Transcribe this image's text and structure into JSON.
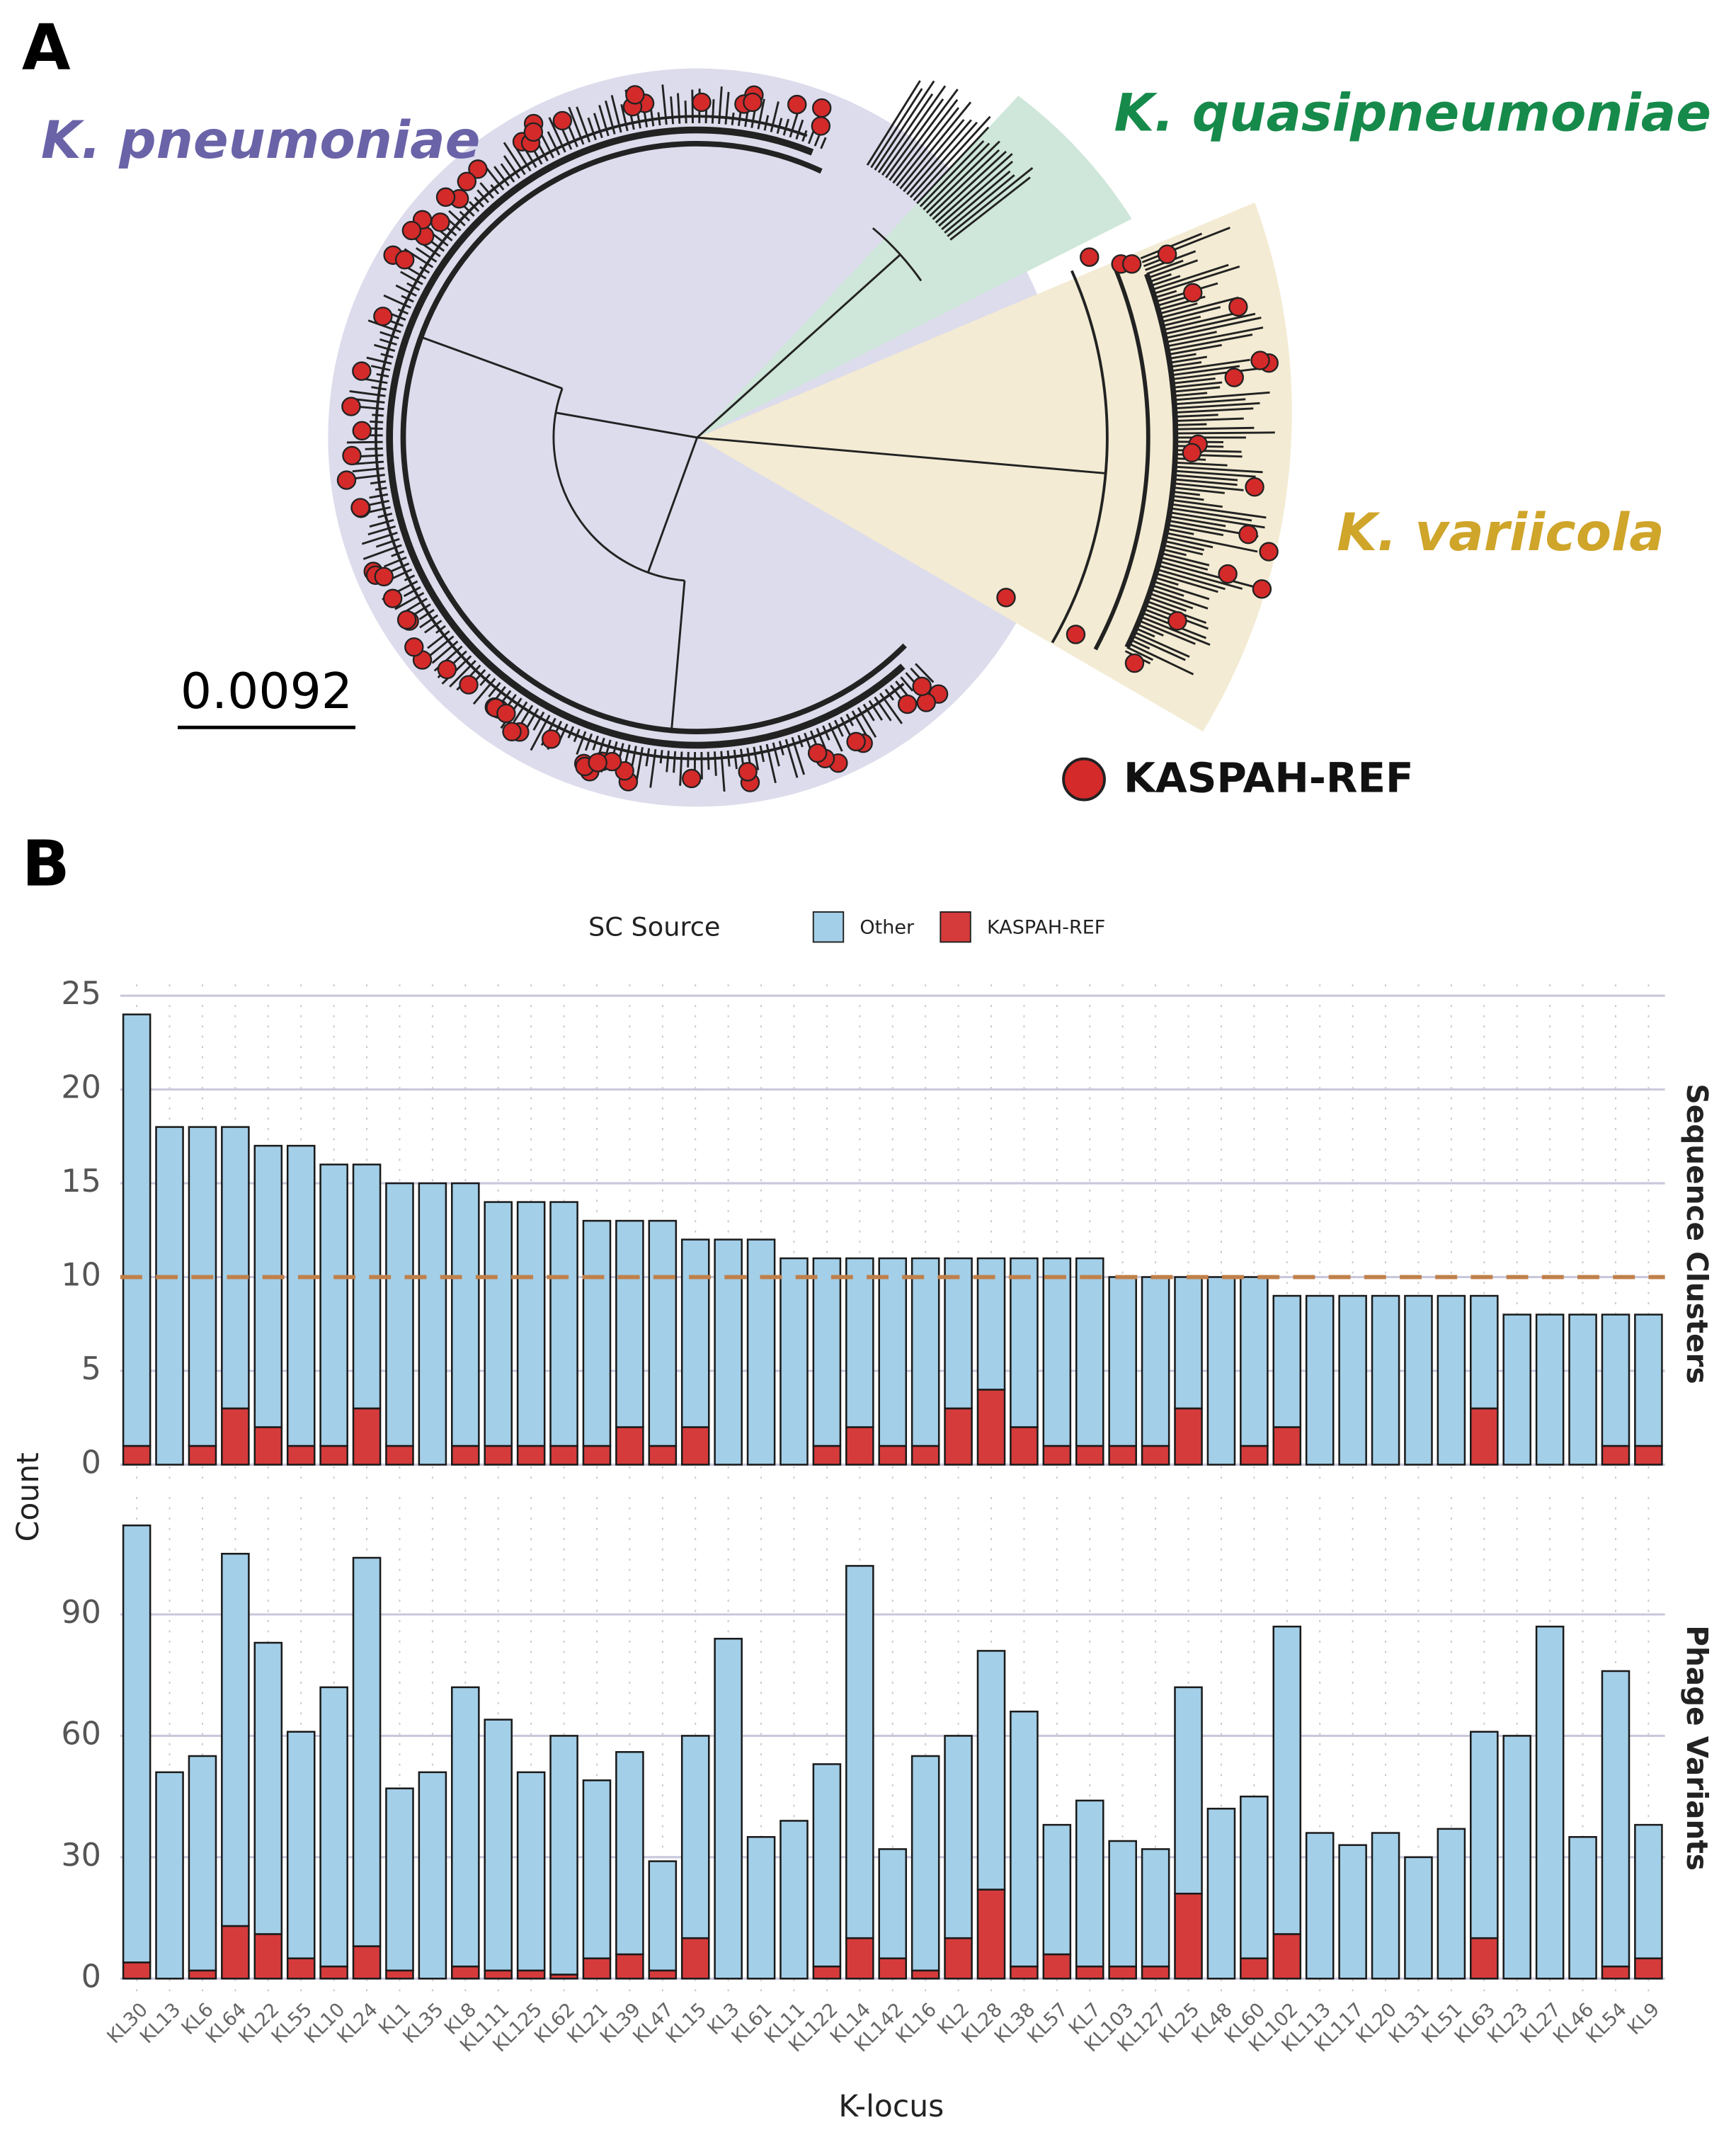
{
  "panel_a": {
    "label": "A",
    "clades": [
      "K. pneumoniae",
      "K. quasipneumoniae",
      "K. variicola"
    ],
    "scale_bar": "0.0092",
    "legend": "KASPAH-REF"
  },
  "panel_b": {
    "label": "B"
  },
  "chart_data": {
    "type": "bar",
    "stacked": true,
    "legend_title": "SC Source",
    "x_label": "K-locus",
    "y_label": "Count",
    "categories": [
      "KL30",
      "KL13",
      "KL6",
      "KL64",
      "KL22",
      "KL55",
      "KL10",
      "KL24",
      "KL1",
      "KL35",
      "KL8",
      "KL111",
      "KL125",
      "KL62",
      "KL21",
      "KL39",
      "KL47",
      "KL15",
      "KL3",
      "KL61",
      "KL11",
      "KL122",
      "KL14",
      "KL142",
      "KL16",
      "KL2",
      "KL28",
      "KL38",
      "KL57",
      "KL7",
      "KL103",
      "KL127",
      "KL25",
      "KL48",
      "KL60",
      "KL102",
      "KL113",
      "KL117",
      "KL20",
      "KL31",
      "KL51",
      "KL63",
      "KL23",
      "KL27",
      "KL46",
      "KL54",
      "KL9"
    ],
    "legend_order": [
      1,
      0
    ],
    "panels": [
      {
        "strip": "Sequence Clusters",
        "ylim": [
          -1,
          25.6
        ],
        "yticks": [
          0,
          5,
          10,
          15,
          20,
          25
        ],
        "grid": true,
        "hline": {
          "value": 10,
          "color": "#c0804a"
        },
        "series": [
          {
            "name": "KASPAH-REF",
            "color": "#d63b3b",
            "values": [
              1,
              0,
              1,
              3,
              2,
              1,
              1,
              3,
              1,
              0,
              1,
              1,
              1,
              1,
              1,
              2,
              1,
              2,
              0,
              0,
              0,
              1,
              2,
              1,
              1,
              3,
              4,
              2,
              1,
              1,
              1,
              1,
              3,
              0,
              1,
              2,
              0,
              0,
              0,
              0,
              0,
              3,
              0,
              0,
              0,
              1,
              1
            ]
          },
          {
            "name": "Other",
            "color": "#a3cfe8",
            "values": [
              23,
              18,
              17,
              15,
              15,
              16,
              15,
              13,
              14,
              15,
              14,
              13,
              13,
              13,
              12,
              11,
              12,
              10,
              12,
              12,
              11,
              10,
              9,
              10,
              10,
              8,
              7,
              9,
              10,
              10,
              9,
              9,
              7,
              10,
              9,
              7,
              9,
              9,
              9,
              9,
              9,
              6,
              8,
              8,
              8,
              7,
              7
            ]
          }
        ]
      },
      {
        "strip": "Phage Variants",
        "ylim": [
          -5,
          119
        ],
        "yticks": [
          0,
          30,
          60,
          90
        ],
        "grid": true,
        "series": [
          {
            "name": "KASPAH-REF",
            "color": "#d63b3b",
            "values": [
              4,
              0,
              2,
              13,
              11,
              5,
              3,
              8,
              2,
              0,
              3,
              2,
              2,
              1,
              5,
              6,
              2,
              10,
              0,
              0,
              0,
              3,
              10,
              5,
              2,
              10,
              22,
              3,
              6,
              3,
              3,
              3,
              21,
              0,
              5,
              11,
              0,
              0,
              0,
              0,
              0,
              10,
              0,
              0,
              0,
              3,
              5
            ]
          },
          {
            "name": "Other",
            "color": "#a3cfe8",
            "values": [
              108,
              51,
              53,
              92,
              72,
              56,
              69,
              96,
              45,
              51,
              69,
              62,
              49,
              59,
              44,
              50,
              27,
              50,
              84,
              35,
              39,
              50,
              92,
              27,
              53,
              50,
              59,
              63,
              32,
              41,
              31,
              29,
              51,
              42,
              40,
              76,
              36,
              33,
              36,
              30,
              37,
              51,
              60,
              87,
              35,
              73,
              33
            ]
          }
        ]
      }
    ]
  }
}
